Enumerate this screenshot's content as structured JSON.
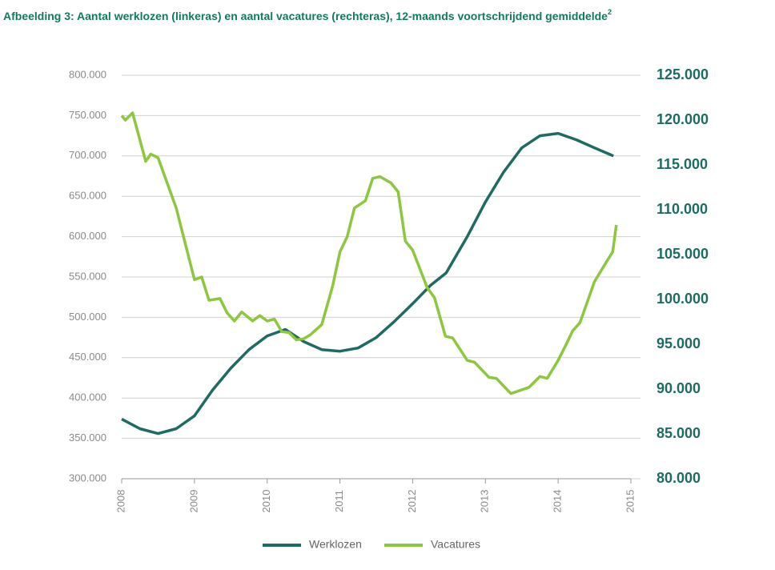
{
  "chart_data": {
    "type": "line",
    "title": "Afbeelding 3: Aantal werklozen (linkeras) en aantal vacatures (rechteras), 12-maands voortschrijdend gemiddelde",
    "title_superscript": "2",
    "xlim": [
      2008,
      2015
    ],
    "xticks": [
      2008,
      2009,
      2010,
      2011,
      2012,
      2013,
      2014,
      2015
    ],
    "ylim": [
      300000,
      800000
    ],
    "yticks": [
      {
        "value": 300000,
        "label": "300.000"
      },
      {
        "value": 350000,
        "label": "350.000"
      },
      {
        "value": 400000,
        "label": "400.000"
      },
      {
        "value": 450000,
        "label": "450.000"
      },
      {
        "value": 500000,
        "label": "500.000"
      },
      {
        "value": 550000,
        "label": "550.000"
      },
      {
        "value": 600000,
        "label": "600.000"
      },
      {
        "value": 650000,
        "label": "650.000"
      },
      {
        "value": 700000,
        "label": "700.000"
      },
      {
        "value": 750000,
        "label": "750.000"
      },
      {
        "value": 800000,
        "label": "800.000"
      }
    ],
    "y2lim": [
      80000,
      125000
    ],
    "y2ticks": [
      {
        "value": 80000,
        "label": "80.000"
      },
      {
        "value": 85000,
        "label": "85.000"
      },
      {
        "value": 90000,
        "label": "90.000"
      },
      {
        "value": 95000,
        "label": "95.000"
      },
      {
        "value": 100000,
        "label": "100.000"
      },
      {
        "value": 105000,
        "label": "105.000"
      },
      {
        "value": 110000,
        "label": "110.000"
      },
      {
        "value": 115000,
        "label": "115.000"
      },
      {
        "value": 120000,
        "label": "120.000"
      },
      {
        "value": 125000,
        "label": "125.000"
      }
    ],
    "grid": true,
    "series": [
      {
        "name": "Werklozen",
        "color": "#1d6b63",
        "x": [
          2008,
          2008.25,
          2008.5,
          2008.75,
          2009,
          2009.25,
          2009.5,
          2009.75,
          2010,
          2010.25,
          2010.5,
          2010.75,
          2011,
          2011.25,
          2011.5,
          2011.75,
          2012,
          2012.25,
          2012.46,
          2012.75,
          2013,
          2013.25,
          2013.5,
          2013.75,
          2014,
          2014.25,
          2014.5,
          2014.76
        ],
        "values": [
          374000,
          362000,
          356000,
          362000,
          378000,
          410000,
          437000,
          460000,
          477000,
          485000,
          470000,
          460000,
          458000,
          462000,
          475000,
          495000,
          517000,
          540000,
          555000,
          600000,
          643000,
          680000,
          710000,
          725000,
          728000,
          720000,
          710000,
          700000
        ]
      },
      {
        "name": "Vacatures",
        "color": "#8dc63f",
        "axis": "y2",
        "x": [
          2008,
          2008.05,
          2008.15,
          2008.33,
          2008.4,
          2008.5,
          2008.75,
          2009,
          2009.1,
          2009.2,
          2009.35,
          2009.45,
          2009.55,
          2009.65,
          2009.8,
          2009.9,
          2010,
          2010.1,
          2010.2,
          2010.3,
          2010.4,
          2010.5,
          2010.6,
          2010.75,
          2010.9,
          2011,
          2011.1,
          2011.2,
          2011.35,
          2011.45,
          2011.55,
          2011.7,
          2011.8,
          2011.9,
          2012,
          2012.2,
          2012.3,
          2012.45,
          2012.55,
          2012.75,
          2012.85,
          2013.05,
          2013.15,
          2013.35,
          2013.6,
          2013.75,
          2013.85,
          2014,
          2014.1,
          2014.2,
          2014.3,
          2014.5,
          2014.65,
          2014.75,
          2014.8
        ],
        "values": [
          120500,
          120000,
          120800,
          115400,
          116200,
          115800,
          110200,
          102200,
          102500,
          99900,
          100100,
          98500,
          97600,
          98600,
          97600,
          98200,
          97600,
          97800,
          96400,
          96300,
          95500,
          95600,
          96100,
          97200,
          101500,
          105300,
          107000,
          110200,
          111000,
          113500,
          113700,
          113000,
          112000,
          106500,
          105500,
          101300,
          100200,
          95900,
          95700,
          93200,
          93000,
          91300,
          91200,
          89500,
          90200,
          91400,
          91200,
          93200,
          94800,
          96500,
          97400,
          102000,
          104000,
          105300,
          108300
        ]
      }
    ]
  }
}
